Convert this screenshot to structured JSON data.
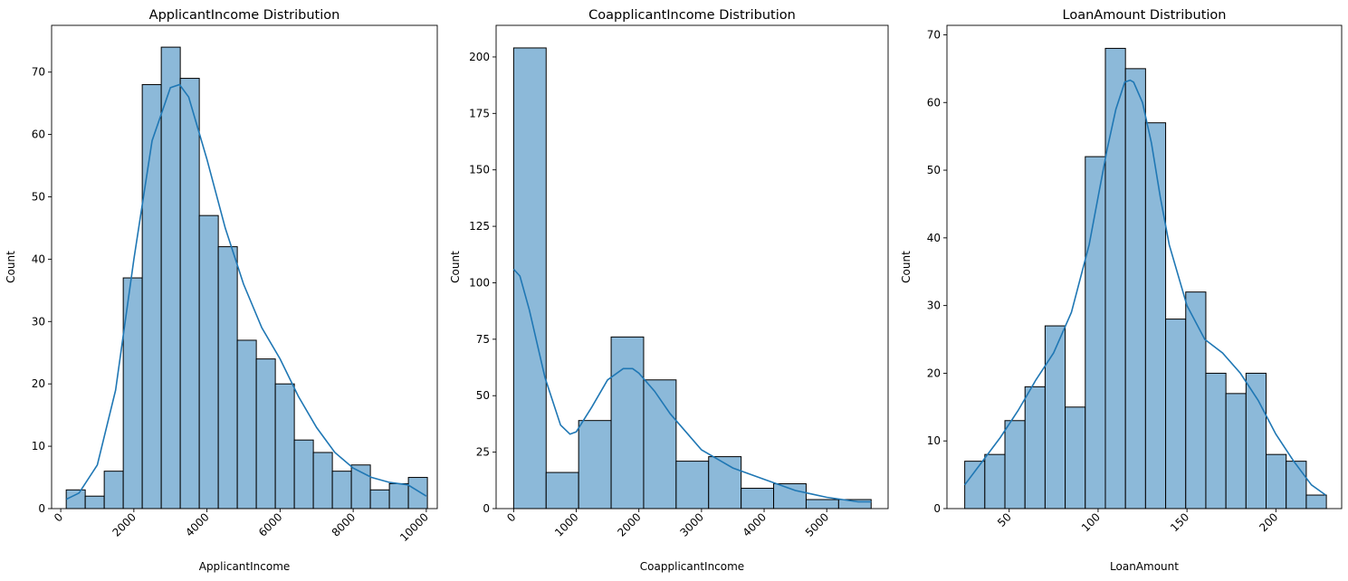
{
  "chart_data": [
    {
      "type": "bar",
      "title": "ApplicantIncome Distribution",
      "xlabel": "ApplicantIncome",
      "ylabel": "Count",
      "xlim": [
        -250,
        10300
      ],
      "ylim": [
        0,
        77.5
      ],
      "xticks": [
        0,
        2000,
        4000,
        6000,
        8000,
        10000
      ],
      "xtick_rotation": 45,
      "yticks": [
        0,
        10,
        20,
        30,
        40,
        50,
        60,
        70
      ],
      "bin_edges": [
        150,
        670,
        1190,
        1710,
        2230,
        2750,
        3270,
        3790,
        4310,
        4830,
        5350,
        5870,
        6390,
        6910,
        7430,
        7950,
        8470,
        8990,
        9510,
        10030
      ],
      "counts": [
        3,
        2,
        6,
        37,
        68,
        74,
        69,
        47,
        42,
        27,
        24,
        20,
        11,
        9,
        6,
        7,
        3,
        4,
        5
      ],
      "kde": {
        "x": [
          150,
          500,
          1000,
          1500,
          2000,
          2500,
          3000,
          3250,
          3500,
          4000,
          4500,
          5000,
          5500,
          6000,
          6500,
          7000,
          7500,
          8000,
          8500,
          9000,
          9500,
          10000
        ],
        "y": [
          1.5,
          2.5,
          7,
          19,
          40,
          59,
          67.5,
          68,
          66,
          56,
          45,
          36,
          29,
          24,
          18,
          13,
          9,
          6.5,
          5,
          4.2,
          3.8,
          2
        ]
      },
      "grid": false
    },
    {
      "type": "bar",
      "title": "CoapplicantIncome Distribution",
      "xlabel": "CoapplicantIncome",
      "ylabel": "Count",
      "xlim": [
        -280,
        5980
      ],
      "ylim": [
        0,
        214
      ],
      "xticks": [
        0,
        1000,
        2000,
        3000,
        4000,
        5000
      ],
      "xtick_rotation": 45,
      "yticks": [
        0,
        25,
        50,
        75,
        100,
        125,
        150,
        175,
        200
      ],
      "bin_edges": [
        0,
        519,
        1038,
        1557,
        2076,
        2595,
        3114,
        3633,
        4152,
        4671,
        5190,
        5709
      ],
      "counts": [
        204,
        16,
        39,
        76,
        57,
        21,
        23,
        9,
        11,
        4,
        4
      ],
      "kde": {
        "x": [
          0,
          100,
          250,
          500,
          750,
          900,
          1000,
          1250,
          1500,
          1750,
          1900,
          2000,
          2250,
          2500,
          3000,
          3500,
          4000,
          4500,
          5000,
          5500,
          5709
        ],
        "y": [
          106,
          103,
          88,
          58,
          37,
          33,
          34,
          45,
          57,
          62,
          62,
          60,
          52,
          42,
          26,
          18,
          13,
          8,
          5,
          3,
          3
        ]
      },
      "grid": false
    },
    {
      "type": "bar",
      "title": "LoanAmount Distribution",
      "xlabel": "LoanAmount",
      "ylabel": "Count",
      "xlim": [
        15,
        237
      ],
      "ylim": [
        0,
        71.4
      ],
      "xticks": [
        50,
        100,
        150,
        200
      ],
      "xtick_rotation": 45,
      "yticks": [
        0,
        10,
        20,
        30,
        40,
        50,
        60,
        70
      ],
      "bin_edges": [
        25,
        36.3,
        47.6,
        58.9,
        70.2,
        81.5,
        92.8,
        104.1,
        115.4,
        126.7,
        138,
        149.3,
        160.6,
        171.9,
        183.2,
        194.5,
        205.8,
        217.1,
        228.4
      ],
      "counts": [
        7,
        8,
        13,
        18,
        27,
        15,
        52,
        68,
        65,
        57,
        28,
        32,
        20,
        17,
        20,
        8,
        7,
        2
      ],
      "kde": {
        "x": [
          25,
          35,
          45,
          55,
          65,
          75,
          85,
          95,
          100,
          105,
          110,
          115,
          118,
          120,
          125,
          130,
          135,
          140,
          150,
          160,
          170,
          180,
          190,
          200,
          210,
          220,
          228
        ],
        "y": [
          3.5,
          7,
          10.5,
          14.5,
          19,
          23,
          29,
          39,
          46,
          53,
          59,
          63,
          63.3,
          63,
          60,
          54,
          46,
          39,
          30,
          25,
          23,
          20,
          16,
          11,
          7,
          3.5,
          2
        ]
      },
      "grid": false
    }
  ]
}
